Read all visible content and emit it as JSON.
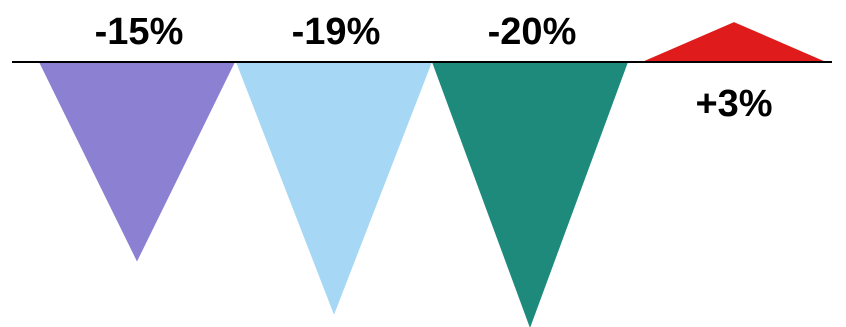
{
  "chart_data": {
    "type": "triangle-bar",
    "values": [
      -15,
      -19,
      -20,
      3
    ],
    "value_labels": [
      "-15%",
      "-19%",
      "-20%",
      "+3%"
    ],
    "colors": [
      "#8b80d2",
      "#a6d8f5",
      "#1d8a7c",
      "#e01b1b"
    ]
  }
}
